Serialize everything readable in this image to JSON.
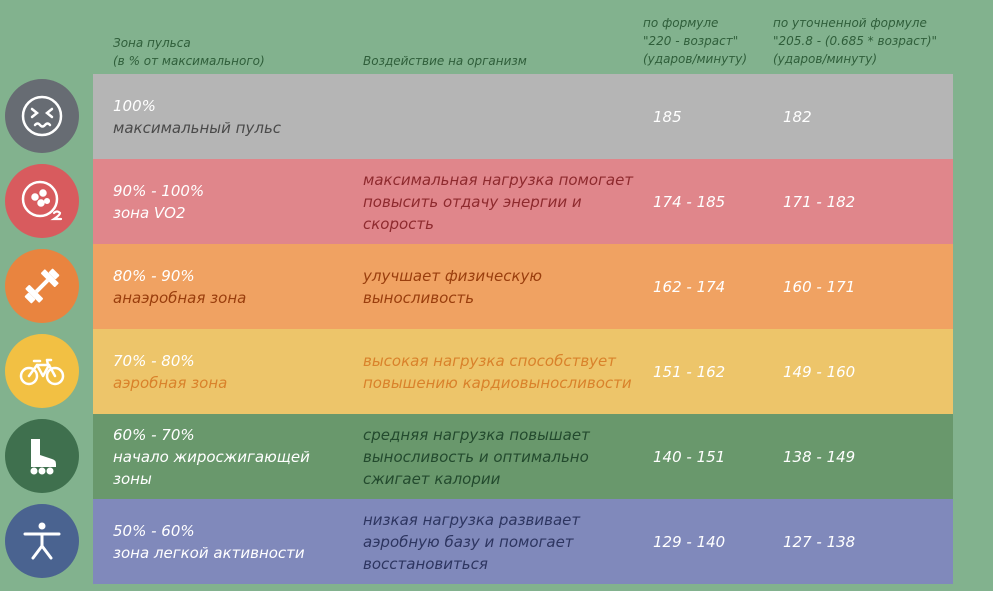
{
  "headers": {
    "zone": "Зона пульса\n(в % от максимального)",
    "effect": "Воздействие на организм",
    "formula1": "по формуле\n\"220 - возраст\"\n(ударов/минуту)",
    "formula2": "по уточненной формуле\n\"205.8 - (0.685 * возраст)\"\n(ударов/минуту)"
  },
  "rows": [
    {
      "percent": "100%",
      "name": "максимальный пульс",
      "effect": "",
      "f1": "185",
      "f2": "182",
      "bg": "#b5b5b5",
      "icon_bg": "#676c73",
      "icon": "face-icon",
      "percent_color": "#ffffff",
      "name_color": "#4a4a4a",
      "effect_color": "#4a4a4a"
    },
    {
      "percent": "90% - 100%",
      "name": "зона VO2",
      "effect": "максимальная нагрузка помогает повысить отдачу энергии и скорость",
      "f1": "174 - 185",
      "f2": "171 - 182",
      "bg": "#e0868b",
      "icon_bg": "#d85b5e",
      "icon": "vo2-icon",
      "percent_color": "#ffffff",
      "name_color": "#ffffff",
      "effect_color": "#8e2a2e"
    },
    {
      "percent": "80% - 90%",
      "name": "анаэробная зона",
      "effect": "улучшает физическую выносливость",
      "f1": "162 - 174",
      "f2": "160 - 171",
      "bg": "#f0a262",
      "icon_bg": "#e9843f",
      "icon": "dumbbell-icon",
      "percent_color": "#ffffff",
      "name_color": "#9a3e0d",
      "effect_color": "#9a3e0d"
    },
    {
      "percent": "70% - 80%",
      "name": "аэробная зона",
      "effect": "высокая нагрузка способствует повышению кардиовыносливости",
      "f1": "151 - 162",
      "f2": "149 - 160",
      "bg": "#edc56a",
      "icon_bg": "#f2c043",
      "icon": "bicycle-icon",
      "percent_color": "#ffffff",
      "name_color": "#d9822b",
      "effect_color": "#d9822b"
    },
    {
      "percent": "60% - 70%",
      "name": "начало жиросжигающей зоны",
      "effect": "средняя нагрузка повышает выносливость и оптимально сжигает калории",
      "f1": "140 - 151",
      "f2": "138 - 149",
      "bg": "#69986c",
      "icon_bg": "#3f704e",
      "icon": "rollerskate-icon",
      "percent_color": "#ffffff",
      "name_color": "#ffffff",
      "effect_color": "#234a2e"
    },
    {
      "percent": "50% - 60%",
      "name": "зона легкой активности",
      "effect": "низкая нагрузка развивает аэробную базу и помогает восстановиться",
      "f1": "129 - 140",
      "f2": "127 - 138",
      "bg": "#8089bb",
      "icon_bg": "#4a6390",
      "icon": "stretching-person-icon",
      "percent_color": "#ffffff",
      "name_color": "#ffffff",
      "effect_color": "#2d3560"
    }
  ]
}
